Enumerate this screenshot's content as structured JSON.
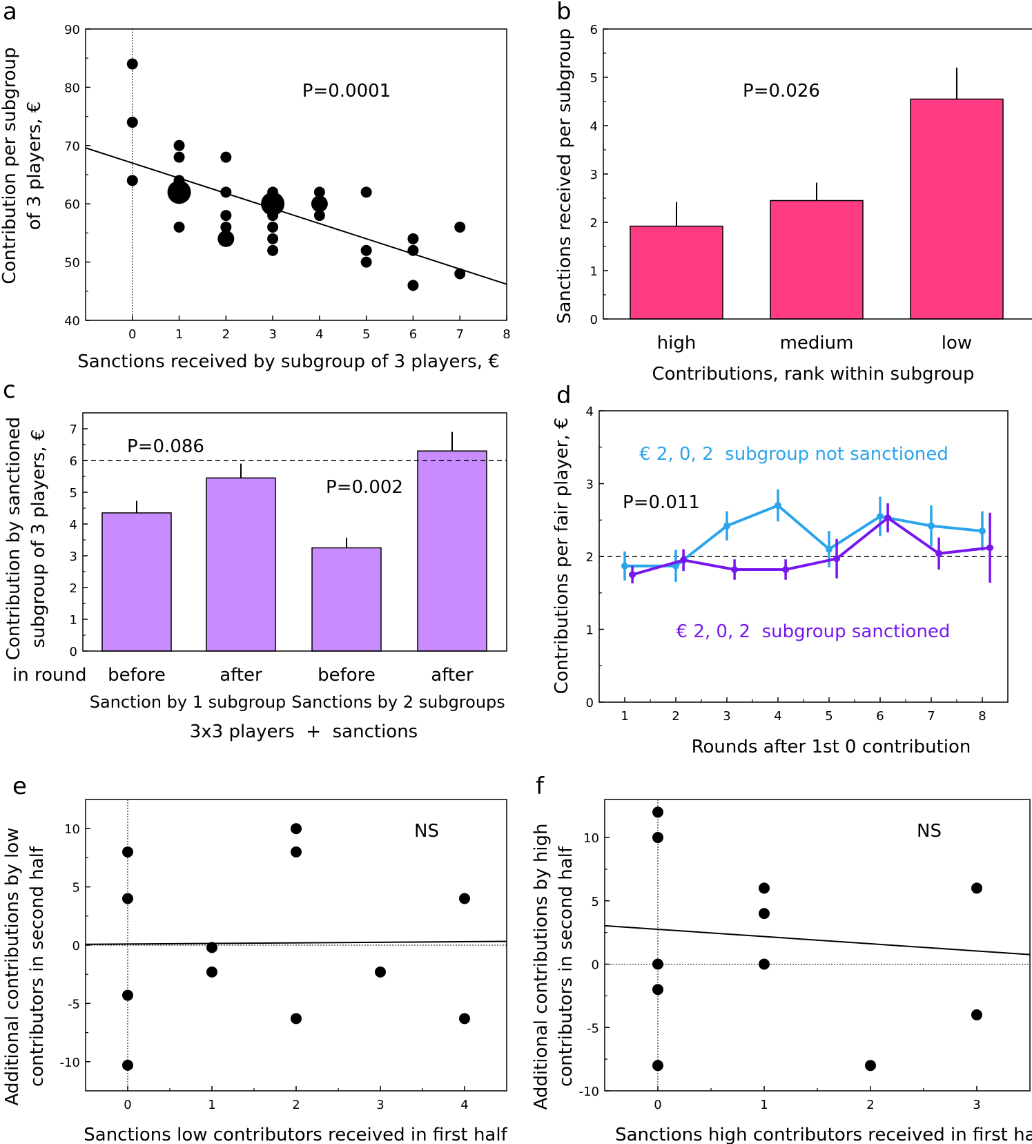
{
  "chart_data": [
    {
      "panel": "a",
      "type": "scatter",
      "xlabel": "Sanctions received by subgroup of 3 players, €",
      "ylabel": [
        "Contribution per subgroup",
        "of 3 players, €"
      ],
      "xlim": [
        -1,
        8
      ],
      "ylim": [
        40,
        90
      ],
      "xticks": [
        0,
        1,
        2,
        3,
        4,
        5,
        6,
        7,
        8
      ],
      "yticks": [
        40,
        50,
        60,
        70,
        80,
        90
      ],
      "annotation": "P=0.0001",
      "regression": {
        "intercept": 67.0,
        "slope": -2.6
      },
      "points": [
        {
          "x": 0,
          "y": 84,
          "n": 1
        },
        {
          "x": 0,
          "y": 74,
          "n": 1
        },
        {
          "x": 0,
          "y": 64,
          "n": 1
        },
        {
          "x": 1,
          "y": 70,
          "n": 1
        },
        {
          "x": 1,
          "y": 68,
          "n": 1
        },
        {
          "x": 1,
          "y": 64,
          "n": 1
        },
        {
          "x": 1,
          "y": 62,
          "n": 3
        },
        {
          "x": 1,
          "y": 56,
          "n": 1
        },
        {
          "x": 2,
          "y": 68,
          "n": 1
        },
        {
          "x": 2,
          "y": 62,
          "n": 1
        },
        {
          "x": 2,
          "y": 58,
          "n": 1
        },
        {
          "x": 2,
          "y": 56,
          "n": 1
        },
        {
          "x": 2,
          "y": 54,
          "n": 2
        },
        {
          "x": 3,
          "y": 62,
          "n": 1
        },
        {
          "x": 3,
          "y": 60,
          "n": 3
        },
        {
          "x": 3,
          "y": 58,
          "n": 1
        },
        {
          "x": 3,
          "y": 56,
          "n": 1
        },
        {
          "x": 3,
          "y": 54,
          "n": 1
        },
        {
          "x": 3,
          "y": 52,
          "n": 1
        },
        {
          "x": 4,
          "y": 62,
          "n": 1
        },
        {
          "x": 4,
          "y": 60,
          "n": 2
        },
        {
          "x": 4,
          "y": 58,
          "n": 1
        },
        {
          "x": 5,
          "y": 62,
          "n": 1
        },
        {
          "x": 5,
          "y": 52,
          "n": 1
        },
        {
          "x": 5,
          "y": 50,
          "n": 1
        },
        {
          "x": 6,
          "y": 54,
          "n": 1
        },
        {
          "x": 6,
          "y": 52,
          "n": 1
        },
        {
          "x": 6,
          "y": 46,
          "n": 1
        },
        {
          "x": 7,
          "y": 56,
          "n": 1
        },
        {
          "x": 7,
          "y": 48,
          "n": 1
        }
      ]
    },
    {
      "panel": "b",
      "type": "bar",
      "categories": [
        "high",
        "medium",
        "low"
      ],
      "values": [
        1.92,
        2.45,
        4.55
      ],
      "errors": [
        0.5,
        0.37,
        0.65
      ],
      "ylim": [
        0,
        6
      ],
      "yticks": [
        0,
        1,
        2,
        3,
        4,
        5,
        6
      ],
      "xlabel": "Contributions, rank within subgroup",
      "ylabel": "Sanctions received per subgroup",
      "annotation": "P=0.026",
      "color": "#ff3b84"
    },
    {
      "panel": "c",
      "type": "bar",
      "categories": [
        "before",
        "after",
        "before",
        "after"
      ],
      "values": [
        4.35,
        5.45,
        3.25,
        6.3
      ],
      "errors": [
        0.38,
        0.45,
        0.32,
        0.6
      ],
      "ylim": [
        0,
        7.5
      ],
      "yticks": [
        0,
        1,
        2,
        3,
        4,
        5,
        6,
        7
      ],
      "reference_line": 6,
      "row_label": "in round",
      "group_labels": [
        "Sanction by 1 subgroup",
        "Sanctions by 2 subgroups"
      ],
      "xlabel": "3x3 players  +  sanctions",
      "ylabel": [
        "Contribution by sanctioned",
        "subgroup of 3 players, €"
      ],
      "annotations": [
        "P=0.086",
        "P=0.002"
      ],
      "color": "#c98cff"
    },
    {
      "panel": "d",
      "type": "line",
      "x": [
        1,
        2,
        3,
        4,
        5,
        6,
        7,
        8
      ],
      "xlim": [
        0.5,
        8.5
      ],
      "ylim": [
        0,
        4
      ],
      "xticks": [
        1,
        2,
        3,
        4,
        5,
        6,
        7,
        8
      ],
      "yticks": [
        0,
        1,
        2,
        3,
        4
      ],
      "reference_line": 2,
      "xlabel": "Rounds after 1st 0 contribution",
      "ylabel": "Contributions per fair player, €",
      "annotation": "P=0.011",
      "series": [
        {
          "name": "€ 2, 0, 2  subgroup not sanctioned",
          "color": "#2aa4ec",
          "offset": 0,
          "values": [
            1.87,
            1.87,
            2.42,
            2.7,
            2.1,
            2.55,
            2.42,
            2.35
          ],
          "errors": [
            0.2,
            0.22,
            0.2,
            0.22,
            0.25,
            0.27,
            0.28,
            0.27
          ]
        },
        {
          "name": "€ 2, 0, 2  subgroup sanctioned",
          "color": "#7717ee",
          "offset": 0.15,
          "values": [
            1.75,
            1.95,
            1.82,
            1.82,
            1.97,
            2.53,
            2.04,
            2.12
          ],
          "errors": [
            0.12,
            0.15,
            0.14,
            0.14,
            0.27,
            0.2,
            0.22,
            0.48
          ]
        }
      ]
    },
    {
      "panel": "e",
      "type": "scatter",
      "xlabel": "Sanctions low contributors received in first half",
      "ylabel": [
        "Additional contributions by low",
        "contributors in second half"
      ],
      "xlim": [
        -0.5,
        4.5
      ],
      "ylim": [
        -12.5,
        12.5
      ],
      "xticks": [
        0,
        1,
        2,
        3,
        4
      ],
      "yticks": [
        -10,
        -5,
        0,
        5,
        10
      ],
      "annotation": "NS",
      "regression": {
        "intercept": 0.1,
        "slope": 0.05
      },
      "points": [
        {
          "x": 0,
          "y": 8
        },
        {
          "x": 0,
          "y": 4
        },
        {
          "x": 0,
          "y": -4.3
        },
        {
          "x": 0,
          "y": -10.3
        },
        {
          "x": 1,
          "y": -0.2
        },
        {
          "x": 1,
          "y": -2.3
        },
        {
          "x": 2,
          "y": 10
        },
        {
          "x": 2,
          "y": 8
        },
        {
          "x": 2,
          "y": -6.3
        },
        {
          "x": 3,
          "y": -2.3
        },
        {
          "x": 4,
          "y": 4
        },
        {
          "x": 4,
          "y": -6.3
        }
      ]
    },
    {
      "panel": "f",
      "type": "scatter",
      "xlabel": "Sanctions high contributors received in first half",
      "ylabel": [
        "Additional contributions by high",
        "contributors in second half"
      ],
      "xlim": [
        -0.5,
        3.5
      ],
      "ylim": [
        -10,
        13
      ],
      "xticks": [
        0,
        1,
        2,
        3
      ],
      "yticks": [
        -10,
        -5,
        0,
        5,
        10
      ],
      "annotation": "NS",
      "regression": {
        "intercept": 2.75,
        "slope": -0.57
      },
      "points": [
        {
          "x": 0,
          "y": 12
        },
        {
          "x": 0,
          "y": 10
        },
        {
          "x": 0,
          "y": 0
        },
        {
          "x": 0,
          "y": -2
        },
        {
          "x": 0,
          "y": -8
        },
        {
          "x": 1,
          "y": 6
        },
        {
          "x": 1,
          "y": 4
        },
        {
          "x": 1,
          "y": 0
        },
        {
          "x": 2,
          "y": -8
        },
        {
          "x": 3,
          "y": 6
        },
        {
          "x": 3,
          "y": -4
        }
      ]
    }
  ]
}
